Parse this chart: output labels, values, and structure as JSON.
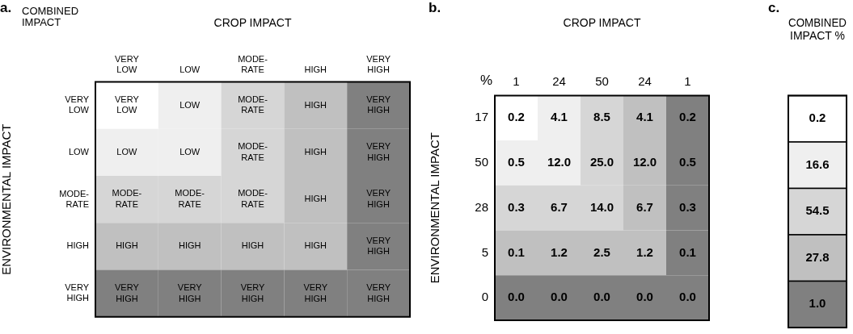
{
  "chart_data": [
    {
      "type": "heatmap",
      "title": "a.",
      "xlabel": "CROP IMPACT",
      "ylabel": "ENVIRONMENTAL IMPACT",
      "annotations": [
        "COMBINED IMPACT"
      ],
      "categories": [
        "VERY LOW",
        "LOW",
        "MODE-RATE",
        "HIGH",
        "VERY HIGH"
      ],
      "y_categories": [
        "VERY LOW",
        "LOW",
        "MODE-RATE",
        "HIGH",
        "VERY HIGH"
      ],
      "cells": [
        [
          null,
          null,
          null,
          null,
          null
        ],
        [
          null,
          null,
          null,
          null,
          null
        ],
        [
          null,
          null,
          null,
          null,
          null
        ],
        [
          null,
          null,
          null,
          null,
          null
        ],
        [
          null,
          null,
          null,
          null,
          null
        ]
      ],
      "cell_labels": [
        [
          "VERY LOW",
          "LOW",
          "MODE-RATE",
          "HIGH",
          "VERY HIGH"
        ],
        [
          "LOW",
          "LOW",
          "MODE-RATE",
          "HIGH",
          "VERY HIGH"
        ],
        [
          "MODE-RATE",
          "MODE-RATE",
          "MODE-RATE",
          "HIGH",
          "VERY HIGH"
        ],
        [
          "HIGH",
          "HIGH",
          "HIGH",
          "HIGH",
          "VERY HIGH"
        ],
        [
          "VERY HIGH",
          "VERY HIGH",
          "VERY HIGH",
          "VERY HIGH",
          "VERY HIGH"
        ]
      ],
      "colors": [
        [
          "#ffffff",
          "#efefef",
          "#d6d6d6",
          "#c0c0c0",
          "#808080"
        ],
        [
          "#efefef",
          "#efefef",
          "#d6d6d6",
          "#c0c0c0",
          "#808080"
        ],
        [
          "#d6d6d6",
          "#d6d6d6",
          "#d6d6d6",
          "#c0c0c0",
          "#808080"
        ],
        [
          "#c0c0c0",
          "#c0c0c0",
          "#c0c0c0",
          "#c0c0c0",
          "#808080"
        ],
        [
          "#808080",
          "#808080",
          "#808080",
          "#808080",
          "#808080"
        ]
      ]
    },
    {
      "type": "heatmap",
      "title": "b.",
      "xlabel": "CROP IMPACT",
      "ylabel": "ENVIRONMENTAL IMPACT",
      "annotations": [
        "%"
      ],
      "categories": [
        "1",
        "24",
        "50",
        "24",
        "1"
      ],
      "y_categories": [
        "17",
        "50",
        "28",
        "5",
        "0"
      ],
      "cells": [
        [
          0.2,
          4.1,
          8.5,
          4.1,
          0.2
        ],
        [
          0.5,
          12.0,
          25.0,
          12.0,
          0.5
        ],
        [
          0.3,
          6.7,
          14.0,
          6.7,
          0.3
        ],
        [
          0.1,
          1.2,
          2.5,
          1.2,
          0.1
        ],
        [
          0.0,
          0.0,
          0.0,
          0.0,
          0.0
        ]
      ],
      "data_labels": true,
      "cell_labels": [
        [
          "0.2",
          "4.1",
          "8.5",
          "4.1",
          "0.2"
        ],
        [
          "0.5",
          "12.0",
          "25.0",
          "12.0",
          "0.5"
        ],
        [
          "0.3",
          "6.7",
          "14.0",
          "6.7",
          "0.3"
        ],
        [
          "0.1",
          "1.2",
          "2.5",
          "1.2",
          "0.1"
        ],
        [
          "0.0",
          "0.0",
          "0.0",
          "0.0",
          "0.0"
        ]
      ],
      "colors": [
        [
          "#ffffff",
          "#efefef",
          "#d6d6d6",
          "#c0c0c0",
          "#808080"
        ],
        [
          "#efefef",
          "#efefef",
          "#d6d6d6",
          "#c0c0c0",
          "#808080"
        ],
        [
          "#d6d6d6",
          "#d6d6d6",
          "#d6d6d6",
          "#c0c0c0",
          "#808080"
        ],
        [
          "#c0c0c0",
          "#c0c0c0",
          "#c0c0c0",
          "#c0c0c0",
          "#808080"
        ],
        [
          "#808080",
          "#808080",
          "#808080",
          "#808080",
          "#808080"
        ]
      ]
    },
    {
      "type": "heatmap",
      "title": "c.",
      "xlabel": "COMBINED IMPACT %",
      "categories": [
        null
      ],
      "y_categories": [
        null,
        null,
        null,
        null,
        null
      ],
      "cells": [
        [
          0.2
        ],
        [
          16.6
        ],
        [
          54.5
        ],
        [
          27.8
        ],
        [
          1.0
        ]
      ],
      "cell_labels": [
        [
          "0.2"
        ],
        [
          "16.6"
        ],
        [
          "54.5"
        ],
        [
          "27.8"
        ],
        [
          "1.0"
        ]
      ],
      "data_labels": true,
      "colors": [
        [
          "#ffffff"
        ],
        [
          "#efefef"
        ],
        [
          "#d6d6d6"
        ],
        [
          "#c0c0c0"
        ],
        [
          "#808080"
        ]
      ]
    }
  ]
}
